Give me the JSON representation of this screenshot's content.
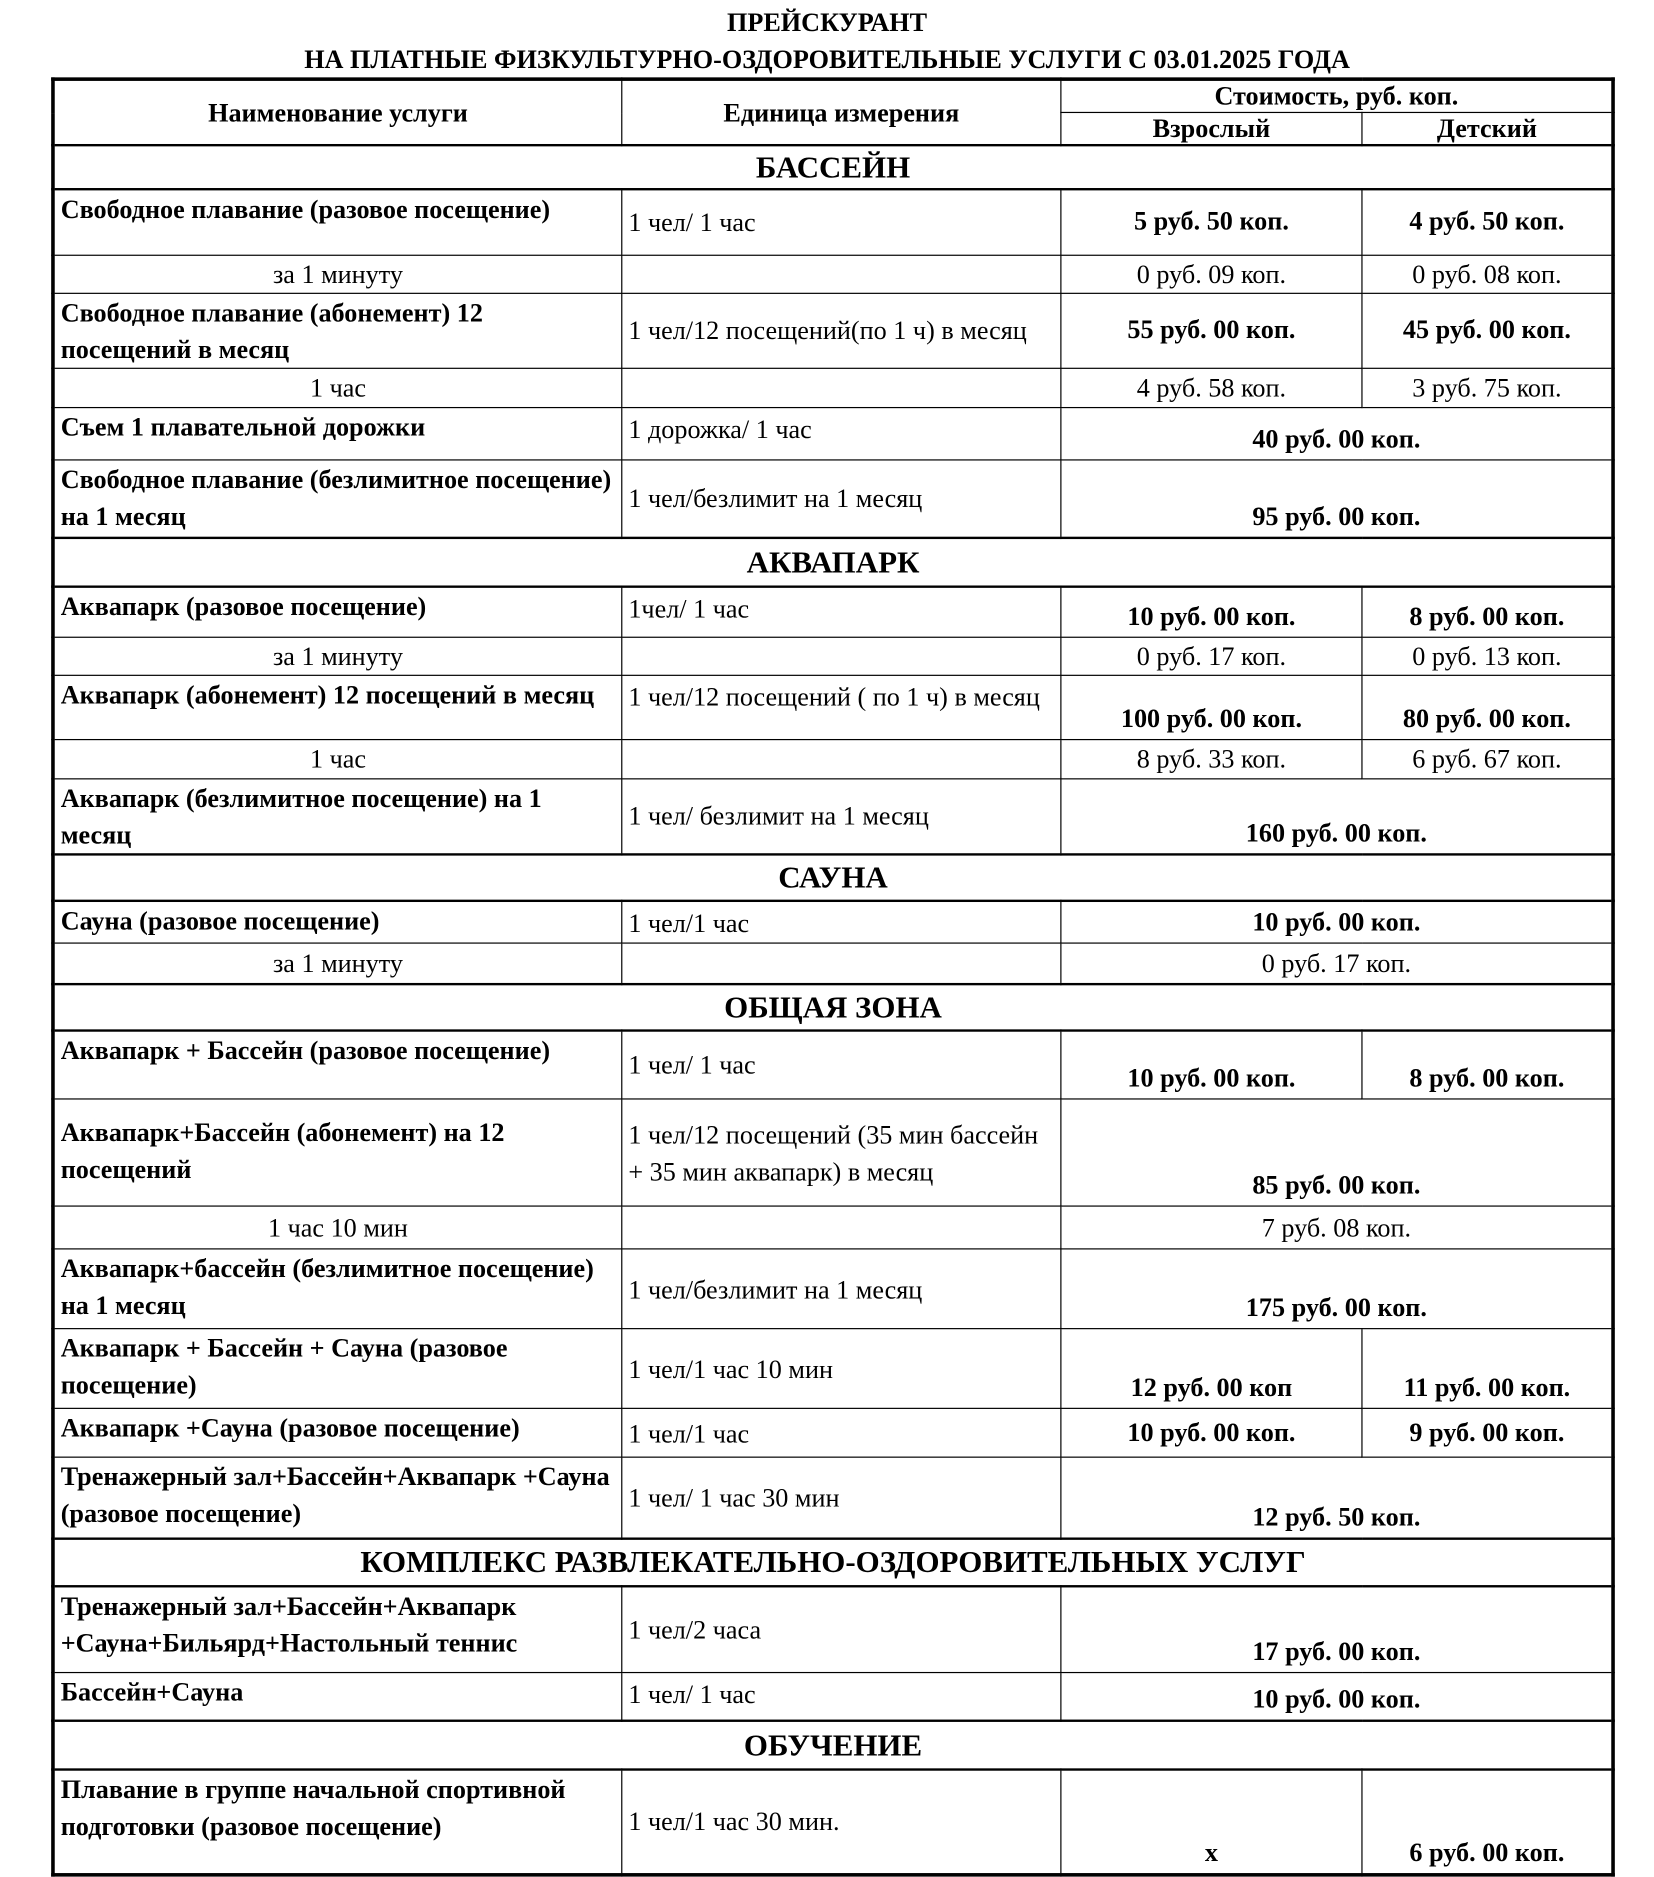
{
  "title_line1": "ПРЕЙСКУРАНТ",
  "title_line2": "НА ПЛАТНЫЕ ФИЗКУЛЬТУРНО-ОЗДОРОВИТЕЛЬНЫЕ УСЛУГИ С 03.01.2025 ГОДА",
  "header": {
    "name": "Наименование услуги",
    "unit": "Единица измерения",
    "cost": "Стоимость, руб. коп.",
    "adult": "Взрослый",
    "child": "Детский"
  },
  "sections": [
    {
      "title": "БАССЕЙН",
      "h": 37,
      "rows": [
        {
          "name": "Свободное плавание (разовое посещение)",
          "unit": "1 чел/ 1 час",
          "adult": "5 руб. 50 коп.",
          "child": "4 руб. 50 коп.",
          "h": 55,
          "va": "middle"
        },
        {
          "name": "за 1 минуту",
          "unit": "",
          "adult": "0 руб. 09 коп.",
          "child": "0 руб. 08 коп.",
          "sub": true,
          "h": 32
        },
        {
          "name": "Свободное плавание (абонемент) 12 посещений в месяц",
          "unit": "1 чел/12 посещений(по 1 ч) в месяц",
          "adult": "55 руб. 00 коп.",
          "child": "45 руб. 00 коп.",
          "h": 58,
          "va": "middle"
        },
        {
          "name": "1 час",
          "unit": "",
          "adult": "4 руб. 58 коп.",
          "child": "3 руб. 75 коп.",
          "sub": true,
          "h": 33
        },
        {
          "name": "Съем 1 плавательной дорожки",
          "unit": "1 дорожка/ 1 час",
          "price": "40 руб. 00 коп.",
          "h": 44,
          "utop": true
        },
        {
          "name": "Свободное плавание (безлимитное посещение) на 1 месяц",
          "unit": "1 чел/безлимит на 1 месяц",
          "price": "95 руб. 00 коп.",
          "h": 66
        }
      ]
    },
    {
      "title": "АКВАПАРК",
      "h": 41,
      "rows": [
        {
          "name": "Аквапарк (разовое посещение)",
          "unit": "1чел/ 1 час",
          "adult": "10 руб. 00 коп.",
          "child": "8 руб. 00 коп.",
          "h": 42,
          "utop": true
        },
        {
          "name": "за 1 минуту",
          "unit": "",
          "adult": "0 руб. 17 коп.",
          "child": "0 руб. 13 коп.",
          "sub": true,
          "h": 32
        },
        {
          "name": "Аквапарк (абонемент) 12 посещений в месяц",
          "unit": "1 чел/12 посещений ( по 1 ч) в месяц",
          "adult": "100 руб. 00 коп.",
          "child": "80 руб. 00 коп.",
          "h": 54,
          "utop": true
        },
        {
          "name": "1 час",
          "unit": "",
          "adult": "8 руб. 33 коп.",
          "child": "6 руб. 67 коп.",
          "sub": true,
          "h": 33
        },
        {
          "name": "Аквапарк (безлимитное посещение) на 1 месяц",
          "unit": "1 чел/ безлимит на 1 месяц",
          "price": "160 руб. 00 коп.",
          "h": 57
        }
      ]
    },
    {
      "title": "САУНА",
      "h": 39,
      "rows": [
        {
          "name": "Сауна (разовое посещение)",
          "unit": "1 чел/1 час",
          "price": "10 руб. 00 коп.",
          "h": 36,
          "utop": true
        },
        {
          "name": "за 1 минуту",
          "unit": "",
          "price": "0 руб. 17 коп.",
          "sub": true,
          "h": 34
        }
      ]
    },
    {
      "title": "ОБЩАЯ ЗОНА",
      "h": 39,
      "rows": [
        {
          "name": "Аквапарк + Бассейн (разовое посещение)",
          "unit": "1 чел/ 1 час",
          "adult": "10 руб. 00 коп.",
          "child": "8 руб. 00 коп.",
          "h": 58
        },
        {
          "name": "Аквапарк+Бассейн (абонемент) на 12 посещений",
          "unit": "1 чел/12 посещений (35 мин бассейн + 35 мин аквапарк) в месяц",
          "price": "85 руб. 00 коп.",
          "h": 90,
          "ntop": 12
        },
        {
          "name": "1 час 10 мин",
          "unit": "",
          "price": "7 руб. 08 коп.",
          "sub": true,
          "h": 36
        },
        {
          "name": "Аквапарк+бассейн (безлимитное посещение) на 1 месяц",
          "unit": "1 чел/безлимит на 1 месяц",
          "price": "175 руб. 00 коп.",
          "h": 67
        },
        {
          "name": "Аквапарк + Бассейн + Сауна (разовое посещение)",
          "unit": "1 чел/1 час 10 мин",
          "adult": "12 руб. 00 коп",
          "child": "11 руб. 00 коп.",
          "h": 67
        },
        {
          "name": "Аквапарк +Сауна (разовое посещение)",
          "unit": "1 чел/1 час",
          "adult": "10 руб. 00 коп.",
          "child": "9 руб. 00 коп.",
          "h": 41,
          "va": "middle"
        },
        {
          "name": "Тренажерный зал+Бассейн+Аквапарк +Сауна (разовое посещение)",
          "unit": "1 чел/ 1 час 30 мин",
          "price": "12 руб. 50 коп.",
          "h": 68
        }
      ]
    },
    {
      "title": "КОМПЛЕКС РАЗВЛЕКАТЕЛЬНО-ОЗДОРОВИТЕЛЬНЫХ УСЛУГ",
      "h": 40,
      "rows": [
        {
          "name": "Тренажерный зал+Бассейн+Аквапарк +Сауна+Бильярд+Настольный теннис",
          "unit": "1 чел/2 часа",
          "price": "17 руб. 00 коп.",
          "h": 73
        },
        {
          "name": "Бассейн+Сауна",
          "unit": "1 чел/ 1 час",
          "price": "10 руб. 00 коп.",
          "h": 40,
          "utop": true
        }
      ]
    },
    {
      "title": "ОБУЧЕНИЕ",
      "h": 41,
      "rows": [
        {
          "name": "Плавание в группе начальной спортивной подготовки (разовое посещение)",
          "unit": "1 чел/1 час 30 мин.",
          "adult": "х",
          "child": "6 руб. 00 коп.",
          "h": 89
        }
      ]
    }
  ]
}
